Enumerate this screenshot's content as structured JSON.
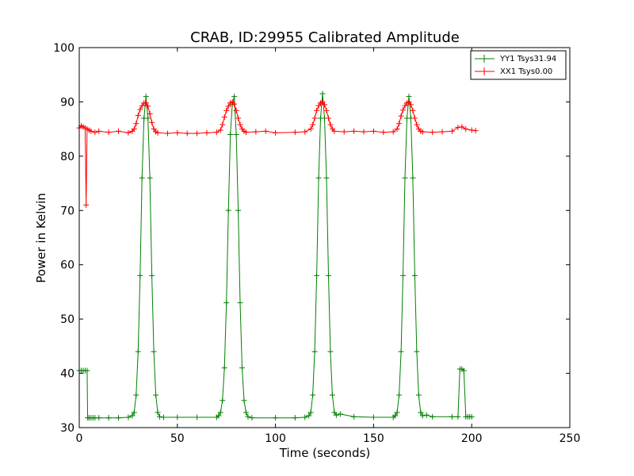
{
  "chart_data": {
    "type": "line",
    "title": "CRAB, ID:29955 Calibrated Amplitude",
    "xlabel": "Time (seconds)",
    "ylabel": "Power in Kelvin",
    "xlim": [
      0,
      250
    ],
    "ylim": [
      30,
      100
    ],
    "xticks": [
      0,
      50,
      100,
      150,
      200,
      250
    ],
    "yticks": [
      30,
      40,
      50,
      60,
      70,
      80,
      90,
      100
    ],
    "grid": false,
    "legend_position": "top-right",
    "series": [
      {
        "name": "YY1 Tsys31.94",
        "color": "#008000",
        "marker": "+",
        "points": [
          [
            0,
            40.5
          ],
          [
            1,
            40.5
          ],
          [
            2,
            40.5
          ],
          [
            3,
            40.5
          ],
          [
            4,
            40.5
          ],
          [
            4.3,
            31.8
          ],
          [
            5,
            31.8
          ],
          [
            6,
            31.8
          ],
          [
            7,
            31.8
          ],
          [
            8,
            31.8
          ],
          [
            10,
            31.8
          ],
          [
            15,
            31.8
          ],
          [
            20,
            31.8
          ],
          [
            25,
            31.9
          ],
          [
            27,
            32.2
          ],
          [
            28,
            32.8
          ],
          [
            29,
            36
          ],
          [
            30,
            44
          ],
          [
            31,
            58
          ],
          [
            32,
            76
          ],
          [
            33,
            87
          ],
          [
            34,
            91
          ],
          [
            35,
            87
          ],
          [
            36,
            76
          ],
          [
            37,
            58
          ],
          [
            38,
            44
          ],
          [
            39,
            36
          ],
          [
            40,
            32.8
          ],
          [
            41,
            32
          ],
          [
            43,
            31.9
          ],
          [
            50,
            31.9
          ],
          [
            60,
            31.9
          ],
          [
            70,
            31.9
          ],
          [
            71,
            32.2
          ],
          [
            72,
            32.8
          ],
          [
            73,
            35
          ],
          [
            74,
            41
          ],
          [
            75,
            53
          ],
          [
            76,
            70
          ],
          [
            77,
            84
          ],
          [
            78,
            89.5
          ],
          [
            79,
            91
          ],
          [
            80,
            84
          ],
          [
            81,
            70
          ],
          [
            82,
            53
          ],
          [
            83,
            41
          ],
          [
            84,
            35
          ],
          [
            85,
            32.8
          ],
          [
            86,
            32
          ],
          [
            88,
            31.8
          ],
          [
            100,
            31.8
          ],
          [
            110,
            31.8
          ],
          [
            115,
            31.9
          ],
          [
            117,
            32.2
          ],
          [
            118,
            32.8
          ],
          [
            119,
            36
          ],
          [
            120,
            44
          ],
          [
            121,
            58
          ],
          [
            122,
            76
          ],
          [
            123,
            87
          ],
          [
            124,
            91.5
          ],
          [
            125,
            87
          ],
          [
            126,
            76
          ],
          [
            127,
            58
          ],
          [
            128,
            44
          ],
          [
            129,
            36
          ],
          [
            130,
            32.8
          ],
          [
            131,
            32.3
          ],
          [
            133,
            32.5
          ],
          [
            140,
            32
          ],
          [
            150,
            31.9
          ],
          [
            160,
            31.9
          ],
          [
            161,
            32.2
          ],
          [
            162,
            32.8
          ],
          [
            163,
            36
          ],
          [
            164,
            44
          ],
          [
            165,
            58
          ],
          [
            166,
            76
          ],
          [
            167,
            87
          ],
          [
            168,
            91
          ],
          [
            169,
            87
          ],
          [
            170,
            76
          ],
          [
            171,
            58
          ],
          [
            172,
            44
          ],
          [
            173,
            36
          ],
          [
            174,
            32.8
          ],
          [
            175,
            32.2
          ],
          [
            177,
            32.3
          ],
          [
            180,
            32
          ],
          [
            190,
            32
          ],
          [
            193,
            32
          ],
          [
            194,
            40.8
          ],
          [
            195,
            40.8
          ],
          [
            196,
            40.5
          ],
          [
            197,
            32
          ],
          [
            198,
            32
          ],
          [
            199,
            32
          ],
          [
            200,
            32
          ]
        ]
      },
      {
        "name": "XX1 Tsys0.00",
        "color": "#ff0000",
        "marker": "+",
        "points": [
          [
            0,
            85.2
          ],
          [
            1,
            85.6
          ],
          [
            2,
            85.4
          ],
          [
            3,
            85.2
          ],
          [
            3.5,
            71
          ],
          [
            4,
            85
          ],
          [
            5,
            84.8
          ],
          [
            6,
            84.6
          ],
          [
            8,
            84.4
          ],
          [
            10,
            84.6
          ],
          [
            15,
            84.4
          ],
          [
            20,
            84.6
          ],
          [
            25,
            84.3
          ],
          [
            27,
            84.6
          ],
          [
            28,
            85
          ],
          [
            29,
            86
          ],
          [
            30,
            87.5
          ],
          [
            31,
            88.6
          ],
          [
            32,
            89.3
          ],
          [
            33,
            89.8
          ],
          [
            34,
            89.8
          ],
          [
            35,
            89.2
          ],
          [
            36,
            87.8
          ],
          [
            37,
            86.2
          ],
          [
            38,
            85
          ],
          [
            39,
            84.5
          ],
          [
            40,
            84.3
          ],
          [
            45,
            84.2
          ],
          [
            50,
            84.3
          ],
          [
            55,
            84.2
          ],
          [
            60,
            84.2
          ],
          [
            65,
            84.3
          ],
          [
            70,
            84.4
          ],
          [
            72,
            84.8
          ],
          [
            73,
            85.8
          ],
          [
            74,
            87.2
          ],
          [
            75,
            88.4
          ],
          [
            76,
            89.2
          ],
          [
            77,
            89.8
          ],
          [
            78,
            90
          ],
          [
            79,
            89.6
          ],
          [
            80,
            88.4
          ],
          [
            81,
            87
          ],
          [
            82,
            85.8
          ],
          [
            83,
            85
          ],
          [
            84,
            84.6
          ],
          [
            85,
            84.4
          ],
          [
            90,
            84.5
          ],
          [
            95,
            84.6
          ],
          [
            100,
            84.3
          ],
          [
            110,
            84.4
          ],
          [
            115,
            84.5
          ],
          [
            118,
            85
          ],
          [
            119,
            85.8
          ],
          [
            120,
            87
          ],
          [
            121,
            88.4
          ],
          [
            122,
            89.3
          ],
          [
            123,
            89.8
          ],
          [
            124,
            90
          ],
          [
            125,
            89.5
          ],
          [
            126,
            88.4
          ],
          [
            127,
            87
          ],
          [
            128,
            85.8
          ],
          [
            129,
            85
          ],
          [
            130,
            84.6
          ],
          [
            135,
            84.5
          ],
          [
            140,
            84.6
          ],
          [
            145,
            84.5
          ],
          [
            150,
            84.6
          ],
          [
            155,
            84.4
          ],
          [
            160,
            84.5
          ],
          [
            162,
            85
          ],
          [
            163,
            86
          ],
          [
            164,
            87.4
          ],
          [
            165,
            88.5
          ],
          [
            166,
            89.3
          ],
          [
            167,
            89.8
          ],
          [
            168,
            90
          ],
          [
            169,
            89.5
          ],
          [
            170,
            88.4
          ],
          [
            171,
            87
          ],
          [
            172,
            85.8
          ],
          [
            173,
            85
          ],
          [
            174,
            84.6
          ],
          [
            175,
            84.5
          ],
          [
            180,
            84.4
          ],
          [
            185,
            84.5
          ],
          [
            190,
            84.6
          ],
          [
            193,
            85.3
          ],
          [
            195,
            85.4
          ],
          [
            197,
            85
          ],
          [
            200,
            84.8
          ],
          [
            202,
            84.7
          ]
        ]
      }
    ]
  }
}
